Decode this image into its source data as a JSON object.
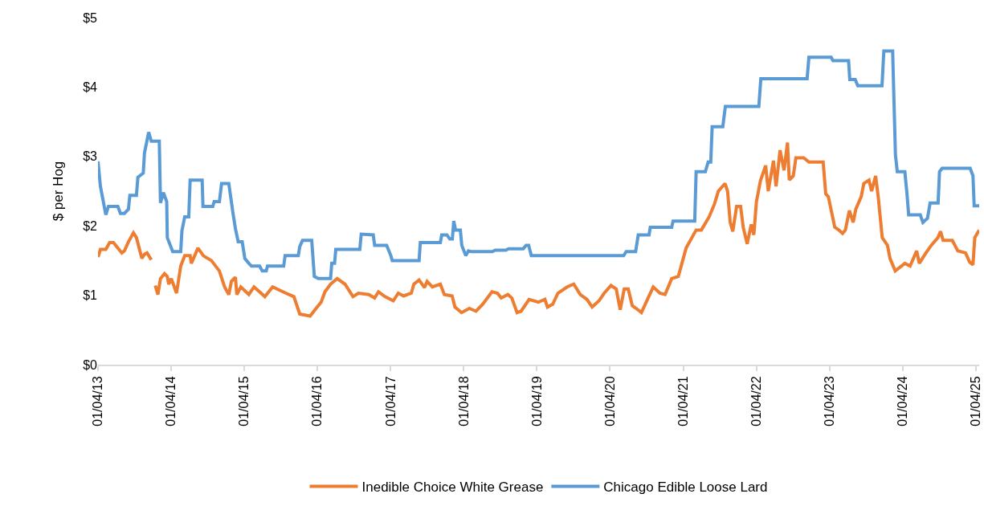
{
  "chart_data": {
    "type": "line",
    "ylabel": "$ per Hog",
    "grid": false,
    "legend": "bottom",
    "line_style": "solid",
    "marker": "none",
    "xlim": [
      "2013-01-04",
      "2025-01-20"
    ],
    "xticks": [
      {
        "value": "2013-01-04",
        "label": "01/04/13"
      },
      {
        "value": "2014-01-04",
        "label": "01/04/14"
      },
      {
        "value": "2015-01-04",
        "label": "01/04/15"
      },
      {
        "value": "2016-01-04",
        "label": "01/04/16"
      },
      {
        "value": "2017-01-04",
        "label": "01/04/17"
      },
      {
        "value": "2018-01-04",
        "label": "01/04/18"
      },
      {
        "value": "2019-01-04",
        "label": "01/04/19"
      },
      {
        "value": "2020-01-04",
        "label": "01/04/20"
      },
      {
        "value": "2021-01-04",
        "label": "01/04/21"
      },
      {
        "value": "2022-01-04",
        "label": "01/04/22"
      },
      {
        "value": "2023-01-04",
        "label": "01/04/23"
      },
      {
        "value": "2024-01-04",
        "label": "01/04/24"
      },
      {
        "value": "2025-01-04",
        "label": "01/04/25"
      }
    ],
    "ylim": [
      0,
      5
    ],
    "yticks": [
      {
        "value": 0,
        "label": "$0"
      },
      {
        "value": 1,
        "label": "$1"
      },
      {
        "value": 2,
        "label": "$2"
      },
      {
        "value": 3,
        "label": "$3"
      },
      {
        "value": 4,
        "label": "$4"
      },
      {
        "value": 5,
        "label": "$5"
      }
    ],
    "series": [
      {
        "name": "Inedible Choice White Grease",
        "color": "#ed7d31",
        "x": [
          "2013-01-04",
          "2013-01-16",
          "2013-02-12",
          "2013-03-03",
          "2013-03-22",
          "2013-04-13",
          "2013-05-03",
          "2013-05-16",
          "2013-06-05",
          "2013-06-30",
          "2013-07-15",
          "2013-08-11",
          "2013-08-24",
          "2013-09-06",
          "2013-09-27",
          "2013-10-10",
          "2013-10-17",
          "2013-10-30",
          "2013-11-12",
          "2013-12-02",
          "2013-12-16",
          "2013-12-23",
          "2014-01-05",
          "2014-01-31",
          "2014-02-21",
          "2014-03-13",
          "2014-04-09",
          "2014-04-15",
          "2014-05-18",
          "2014-06-14",
          "2014-07-24",
          "2014-09-02",
          "2014-09-28",
          "2014-10-19",
          "2014-11-01",
          "2014-11-21",
          "2014-11-28",
          "2014-12-18",
          "2015-01-27",
          "2015-02-22",
          "2015-04-17",
          "2015-05-26",
          "2015-07-31",
          "2015-09-09",
          "2015-10-08",
          "2015-11-29",
          "2016-01-03",
          "2016-01-23",
          "2016-02-11",
          "2016-03-10",
          "2016-04-12",
          "2016-05-21",
          "2016-06-30",
          "2016-07-27",
          "2016-09-17",
          "2016-10-16",
          "2016-11-04",
          "2016-12-07",
          "2017-01-17",
          "2017-02-11",
          "2017-03-10",
          "2017-04-17",
          "2017-04-30",
          "2017-05-26",
          "2017-06-22",
          "2017-07-05",
          "2017-07-31",
          "2017-09-09",
          "2017-09-29",
          "2017-11-07",
          "2017-11-21",
          "2017-12-24",
          "2018-02-01",
          "2018-03-06",
          "2018-04-08",
          "2018-05-25",
          "2018-06-21",
          "2018-07-10",
          "2018-08-12",
          "2018-09-01",
          "2018-09-27",
          "2018-10-17",
          "2018-11-26",
          "2019-01-11",
          "2019-02-13",
          "2019-02-26",
          "2019-03-24",
          "2019-04-19",
          "2019-06-04",
          "2019-07-07",
          "2019-08-09",
          "2019-09-11",
          "2019-10-07",
          "2019-11-10",
          "2019-12-06",
          "2020-01-09",
          "2020-02-04",
          "2020-02-24",
          "2020-03-15",
          "2020-04-04",
          "2020-04-24",
          "2020-05-14",
          "2020-06-09",
          "2020-07-12",
          "2020-08-07",
          "2020-09-09",
          "2020-10-05",
          "2020-11-07",
          "2020-12-10",
          "2021-01-18",
          "2021-03-09",
          "2021-04-04",
          "2021-05-13",
          "2021-06-08",
          "2021-06-28",
          "2021-07-31",
          "2021-08-13",
          "2021-08-26",
          "2021-09-08",
          "2021-09-27",
          "2021-10-17",
          "2021-10-30",
          "2021-11-19",
          "2021-12-09",
          "2021-12-22",
          "2022-01-04",
          "2022-01-24",
          "2022-02-19",
          "2022-03-04",
          "2022-03-30",
          "2022-04-12",
          "2022-05-02",
          "2022-05-22",
          "2022-06-08",
          "2022-06-17",
          "2022-07-07",
          "2022-07-20",
          "2022-08-28",
          "2022-09-23",
          "2022-12-03",
          "2022-12-16",
          "2022-12-29",
          "2023-01-17",
          "2023-01-30",
          "2023-02-19",
          "2023-03-10",
          "2023-03-24",
          "2023-04-13",
          "2023-05-02",
          "2023-05-15",
          "2023-06-11",
          "2023-06-24",
          "2023-07-20",
          "2023-08-02",
          "2023-08-22",
          "2023-09-04",
          "2023-09-24",
          "2023-10-20",
          "2023-11-02",
          "2023-11-28",
          "2024-01-15",
          "2024-02-10",
          "2024-03-14",
          "2024-03-27",
          "2024-04-29",
          "2024-05-26",
          "2024-06-28",
          "2024-07-11",
          "2024-07-24",
          "2024-09-08",
          "2024-10-05",
          "2024-11-13",
          "2024-12-03",
          "2024-12-20",
          "2024-12-29",
          "2025-01-20"
        ],
        "values": [
          1.55,
          1.66,
          1.66,
          1.76,
          1.76,
          1.68,
          1.61,
          1.64,
          1.77,
          1.9,
          1.83,
          1.53,
          1.59,
          1.61,
          1.51,
          null,
          1.14,
          1.01,
          1.24,
          1.31,
          1.27,
          1.16,
          1.24,
          1.03,
          1.42,
          1.57,
          1.57,
          1.46,
          1.68,
          1.57,
          1.5,
          1.35,
          1.12,
          1.01,
          1.2,
          1.26,
          1.01,
          1.12,
          1.01,
          1.12,
          0.98,
          1.12,
          1.03,
          0.98,
          0.73,
          0.7,
          0.83,
          0.9,
          1.05,
          1.16,
          1.24,
          1.16,
          0.98,
          1.03,
          1.01,
          0.96,
          1.05,
          0.98,
          0.92,
          1.03,
          0.99,
          1.03,
          1.16,
          1.22,
          1.11,
          1.2,
          1.12,
          1.16,
          1.01,
          0.99,
          0.83,
          0.75,
          0.81,
          0.77,
          0.87,
          1.05,
          1.03,
          0.96,
          1.01,
          0.96,
          0.75,
          0.77,
          0.94,
          0.9,
          0.94,
          0.83,
          0.87,
          1.03,
          1.12,
          1.16,
          1.01,
          0.94,
          0.83,
          0.92,
          1.03,
          1.14,
          1.09,
          0.79,
          1.09,
          1.09,
          0.85,
          0.81,
          0.75,
          0.96,
          1.12,
          1.03,
          1.01,
          1.24,
          1.27,
          1.68,
          1.94,
          1.94,
          2.13,
          2.31,
          2.5,
          2.61,
          2.5,
          2.05,
          1.92,
          2.28,
          2.28,
          1.98,
          1.74,
          2.02,
          1.87,
          2.35,
          2.65,
          2.87,
          2.5,
          2.94,
          2.57,
          3.09,
          2.8,
          3.2,
          2.66,
          2.72,
          2.98,
          2.98,
          2.92,
          2.92,
          2.46,
          2.42,
          2.16,
          1.98,
          1.94,
          1.89,
          1.94,
          2.22,
          2.05,
          2.24,
          2.42,
          2.61,
          2.66,
          2.5,
          2.72,
          2.42,
          1.83,
          1.72,
          1.53,
          1.35,
          1.46,
          1.42,
          1.64,
          1.46,
          1.61,
          1.72,
          1.83,
          1.92,
          1.79,
          1.79,
          1.64,
          1.61,
          1.48,
          1.44,
          1.83,
          1.94
        ]
      },
      {
        "name": "Chicago Edible Loose Lard",
        "color": "#5b9bd5",
        "x": [
          "2013-01-04",
          "2013-01-16",
          "2013-02-12",
          "2013-02-25",
          "2013-04-13",
          "2013-04-26",
          "2013-05-16",
          "2013-06-05",
          "2013-06-12",
          "2013-07-15",
          "2013-07-22",
          "2013-08-18",
          "2013-08-24",
          "2013-09-14",
          "2013-09-27",
          "2013-11-06",
          "2013-11-12",
          "2013-11-26",
          "2013-12-13",
          "2013-12-16",
          "2014-01-12",
          "2014-02-21",
          "2014-02-27",
          "2014-03-13",
          "2014-04-02",
          "2014-04-09",
          "2014-06-08",
          "2014-06-12",
          "2014-07-31",
          "2014-08-07",
          "2014-09-02",
          "2014-09-13",
          "2014-10-19",
          "2014-11-08",
          "2014-11-21",
          "2014-12-05",
          "2014-12-25",
          "2015-01-07",
          "2015-01-27",
          "2015-02-09",
          "2015-03-22",
          "2015-04-04",
          "2015-04-24",
          "2015-04-30",
          "2015-07-20",
          "2015-07-27",
          "2015-10-01",
          "2015-10-08",
          "2015-10-22",
          "2015-12-07",
          "2015-12-20",
          "2016-01-09",
          "2016-03-10",
          "2016-03-16",
          "2016-03-30",
          "2016-04-05",
          "2016-08-03",
          "2016-08-10",
          "2016-10-09",
          "2016-10-16",
          "2016-12-15",
          "2017-01-05",
          "2017-01-12",
          "2017-05-26",
          "2017-06-01",
          "2017-09-09",
          "2017-09-16",
          "2017-10-12",
          "2017-10-26",
          "2017-11-08",
          "2017-11-15",
          "2017-11-24",
          "2017-12-18",
          "2017-12-25",
          "2018-01-14",
          "2018-01-27",
          "2018-02-10",
          "2018-05-27",
          "2018-06-10",
          "2018-08-02",
          "2018-08-15",
          "2018-10-28",
          "2018-11-11",
          "2018-11-24",
          "2018-12-07",
          "2020-03-12",
          "2020-03-25",
          "2020-05-11",
          "2020-05-24",
          "2020-07-17",
          "2020-07-23",
          "2020-11-07",
          "2020-11-14",
          "2021-03-02",
          "2021-03-09",
          "2021-04-24",
          "2021-05-08",
          "2021-05-21",
          "2021-05-28",
          "2021-07-20",
          "2021-08-02",
          "2022-01-16",
          "2022-01-26",
          "2022-09-14",
          "2022-09-23",
          "2023-01-12",
          "2023-01-21",
          "2023-04-09",
          "2023-04-15",
          "2023-05-12",
          "2023-05-25",
          "2023-09-23",
          "2023-10-02",
          "2023-11-15",
          "2023-11-29",
          "2023-12-08",
          "2024-01-15",
          "2024-01-25",
          "2024-02-03",
          "2024-04-01",
          "2024-04-14",
          "2024-05-07",
          "2024-05-20",
          "2024-06-29",
          "2024-07-06",
          "2024-07-19",
          "2024-12-06",
          "2024-12-20",
          "2024-12-26",
          "2025-01-20"
        ],
        "values": [
          2.93,
          2.57,
          2.16,
          2.28,
          2.28,
          2.18,
          2.18,
          2.24,
          2.44,
          2.44,
          2.7,
          2.76,
          3.05,
          3.35,
          3.22,
          3.22,
          2.33,
          2.48,
          2.35,
          1.83,
          1.63,
          1.63,
          1.93,
          2.13,
          2.13,
          2.66,
          2.66,
          2.28,
          2.28,
          2.35,
          2.35,
          2.61,
          2.61,
          2.2,
          1.96,
          1.77,
          1.77,
          1.53,
          1.46,
          1.42,
          1.42,
          1.35,
          1.35,
          1.42,
          1.42,
          1.57,
          1.57,
          1.7,
          1.79,
          1.79,
          1.27,
          1.24,
          1.24,
          1.46,
          1.46,
          1.66,
          1.66,
          1.88,
          1.87,
          1.72,
          1.72,
          1.57,
          1.5,
          1.5,
          1.76,
          1.76,
          1.87,
          1.87,
          1.81,
          1.81,
          2.07,
          1.94,
          1.94,
          1.72,
          1.57,
          1.64,
          1.63,
          1.63,
          1.65,
          1.65,
          1.67,
          1.67,
          1.72,
          1.72,
          1.57,
          1.57,
          1.63,
          1.63,
          1.87,
          1.87,
          1.98,
          1.98,
          2.07,
          2.07,
          2.78,
          2.78,
          2.92,
          2.92,
          3.43,
          3.43,
          3.72,
          3.72,
          4.12,
          4.12,
          4.43,
          4.43,
          4.38,
          4.38,
          4.11,
          4.11,
          4.02,
          4.02,
          4.52,
          4.52,
          3.02,
          2.78,
          2.78,
          2.48,
          2.16,
          2.16,
          2.05,
          2.11,
          2.33,
          2.33,
          2.78,
          2.83,
          2.83,
          2.72,
          2.29,
          2.29
        ]
      }
    ]
  }
}
